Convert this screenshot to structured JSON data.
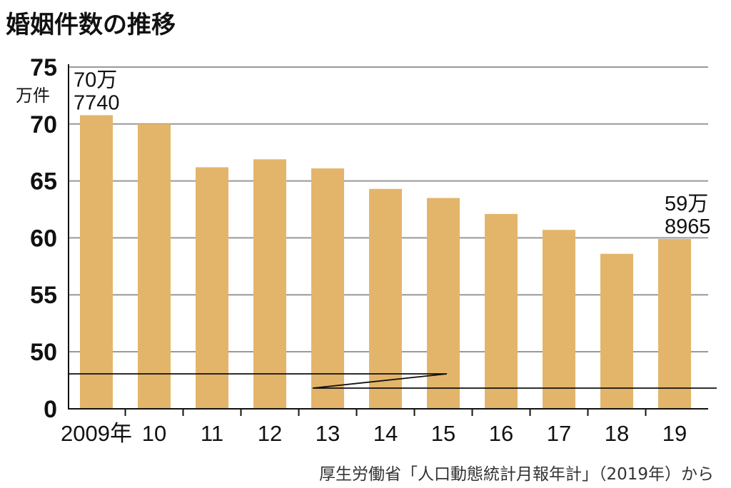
{
  "chart_data": {
    "type": "bar",
    "title": "婚姻件数の推移",
    "y_unit": "万件",
    "categories": [
      "2009年",
      "10",
      "11",
      "12",
      "13",
      "14",
      "15",
      "16",
      "17",
      "18",
      "19"
    ],
    "values": [
      70.774,
      70.0,
      66.2,
      66.9,
      66.1,
      64.3,
      63.5,
      62.1,
      60.7,
      58.6,
      59.8965
    ],
    "y_ticks": [
      "0",
      "50",
      "55",
      "60",
      "65",
      "70",
      "75"
    ],
    "y_axis_break": true,
    "annotations": [
      {
        "category": "2009年",
        "lines": [
          "70万",
          "7740"
        ]
      },
      {
        "category": "19",
        "lines": [
          "59万",
          "8965"
        ]
      }
    ],
    "grid": true,
    "bar_color": "#e3b56b",
    "source": "厚生労働省「人口動態統計月報年計」（2019年）から"
  }
}
